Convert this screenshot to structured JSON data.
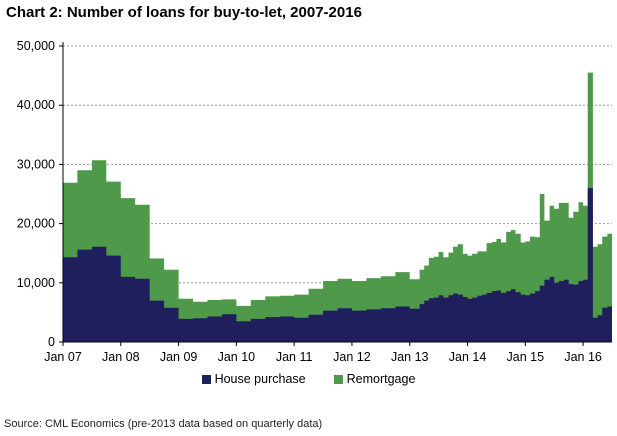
{
  "title": "Chart 2: Number of loans for buy-to-let, 2007-2016",
  "source": "Source: CML Economics (pre-2013 data based on quarterly data)",
  "colors": {
    "house": "#1f1f5e",
    "remortgage": "#4f9a4a",
    "grid": "#888888"
  },
  "chart_data": {
    "type": "area",
    "stacked": true,
    "title": "Chart 2: Number of loans for buy-to-let, 2007-2016",
    "xlabel": "",
    "ylabel": "",
    "ylim": [
      0,
      50000
    ],
    "yticks": [
      0,
      10000,
      20000,
      30000,
      40000,
      50000
    ],
    "ytick_labels": [
      "0",
      "10,000",
      "20,000",
      "30,000",
      "40,000",
      "50,000"
    ],
    "xticks": [
      "Jan 07",
      "Jan 08",
      "Jan 09",
      "Jan 10",
      "Jan 11",
      "Jan 12",
      "Jan 13",
      "Jan 14",
      "Jan 15",
      "Jan 16"
    ],
    "xlim": [
      2007.0,
      2016.5
    ],
    "grid": "horizontal dashed",
    "legend": "bottom",
    "series": [
      {
        "name": "House purchase",
        "color": "#1f1f5e",
        "points": [
          [
            2007.0,
            14300
          ],
          [
            2007.25,
            15600
          ],
          [
            2007.5,
            16100
          ],
          [
            2007.75,
            14600
          ],
          [
            2008.0,
            11000
          ],
          [
            2008.25,
            10700
          ],
          [
            2008.5,
            7000
          ],
          [
            2008.75,
            5800
          ],
          [
            2009.0,
            3900
          ],
          [
            2009.25,
            4000
          ],
          [
            2009.5,
            4300
          ],
          [
            2009.75,
            4700
          ],
          [
            2010.0,
            3500
          ],
          [
            2010.25,
            3900
          ],
          [
            2010.5,
            4200
          ],
          [
            2010.75,
            4300
          ],
          [
            2011.0,
            4100
          ],
          [
            2011.25,
            4600
          ],
          [
            2011.5,
            5300
          ],
          [
            2011.75,
            5700
          ],
          [
            2012.0,
            5300
          ],
          [
            2012.25,
            5500
          ],
          [
            2012.5,
            5700
          ],
          [
            2012.75,
            6000
          ],
          [
            2013.0,
            5600
          ],
          [
            2013.08,
            5600
          ],
          [
            2013.17,
            6400
          ],
          [
            2013.25,
            7000
          ],
          [
            2013.33,
            7400
          ],
          [
            2013.42,
            7500
          ],
          [
            2013.5,
            7900
          ],
          [
            2013.58,
            7500
          ],
          [
            2013.67,
            7900
          ],
          [
            2013.75,
            8200
          ],
          [
            2013.83,
            8000
          ],
          [
            2013.92,
            7600
          ],
          [
            2014.0,
            7300
          ],
          [
            2014.08,
            7500
          ],
          [
            2014.17,
            7800
          ],
          [
            2014.25,
            8000
          ],
          [
            2014.33,
            8300
          ],
          [
            2014.42,
            8600
          ],
          [
            2014.5,
            8700
          ],
          [
            2014.58,
            8300
          ],
          [
            2014.67,
            8600
          ],
          [
            2014.75,
            8900
          ],
          [
            2014.83,
            8400
          ],
          [
            2014.92,
            8000
          ],
          [
            2015.0,
            7900
          ],
          [
            2015.08,
            8200
          ],
          [
            2015.17,
            8600
          ],
          [
            2015.25,
            9500
          ],
          [
            2015.33,
            10500
          ],
          [
            2015.42,
            11000
          ],
          [
            2015.5,
            10000
          ],
          [
            2015.58,
            10300
          ],
          [
            2015.67,
            10500
          ],
          [
            2015.75,
            9800
          ],
          [
            2015.83,
            9700
          ],
          [
            2015.92,
            10300
          ],
          [
            2016.0,
            10500
          ],
          [
            2016.08,
            26000
          ],
          [
            2016.17,
            4100
          ],
          [
            2016.25,
            4500
          ],
          [
            2016.33,
            5800
          ],
          [
            2016.42,
            6000
          ]
        ]
      },
      {
        "name": "Remortgage",
        "color": "#4f9a4a",
        "points": [
          [
            2007.0,
            12600
          ],
          [
            2007.25,
            13400
          ],
          [
            2007.5,
            14600
          ],
          [
            2007.75,
            12500
          ],
          [
            2008.0,
            13300
          ],
          [
            2008.25,
            12500
          ],
          [
            2008.5,
            7100
          ],
          [
            2008.75,
            6400
          ],
          [
            2009.0,
            3400
          ],
          [
            2009.25,
            2800
          ],
          [
            2009.5,
            2800
          ],
          [
            2009.75,
            2500
          ],
          [
            2010.0,
            2600
          ],
          [
            2010.25,
            3200
          ],
          [
            2010.5,
            3500
          ],
          [
            2010.75,
            3500
          ],
          [
            2011.0,
            3900
          ],
          [
            2011.25,
            4400
          ],
          [
            2011.5,
            5000
          ],
          [
            2011.75,
            5000
          ],
          [
            2012.0,
            5000
          ],
          [
            2012.25,
            5300
          ],
          [
            2012.5,
            5400
          ],
          [
            2012.75,
            5800
          ],
          [
            2013.0,
            5000
          ],
          [
            2013.08,
            5000
          ],
          [
            2013.17,
            5800
          ],
          [
            2013.25,
            5900
          ],
          [
            2013.33,
            6800
          ],
          [
            2013.42,
            6900
          ],
          [
            2013.5,
            7300
          ],
          [
            2013.58,
            6800
          ],
          [
            2013.67,
            7200
          ],
          [
            2013.75,
            7900
          ],
          [
            2013.83,
            8500
          ],
          [
            2013.92,
            7300
          ],
          [
            2014.0,
            7300
          ],
          [
            2014.08,
            7400
          ],
          [
            2014.17,
            7500
          ],
          [
            2014.25,
            7300
          ],
          [
            2014.33,
            8400
          ],
          [
            2014.42,
            8300
          ],
          [
            2014.5,
            8700
          ],
          [
            2014.58,
            8500
          ],
          [
            2014.67,
            10000
          ],
          [
            2014.75,
            10000
          ],
          [
            2014.83,
            9900
          ],
          [
            2014.92,
            8800
          ],
          [
            2015.0,
            9100
          ],
          [
            2015.08,
            9600
          ],
          [
            2015.17,
            9100
          ],
          [
            2015.25,
            15500
          ],
          [
            2015.33,
            10000
          ],
          [
            2015.42,
            12000
          ],
          [
            2015.5,
            12500
          ],
          [
            2015.58,
            13200
          ],
          [
            2015.67,
            13000
          ],
          [
            2015.75,
            11200
          ],
          [
            2015.83,
            12300
          ],
          [
            2015.92,
            13300
          ],
          [
            2016.0,
            12500
          ],
          [
            2016.08,
            19500
          ],
          [
            2016.17,
            12000
          ],
          [
            2016.25,
            12000
          ],
          [
            2016.33,
            12000
          ],
          [
            2016.42,
            12300
          ]
        ]
      }
    ]
  }
}
